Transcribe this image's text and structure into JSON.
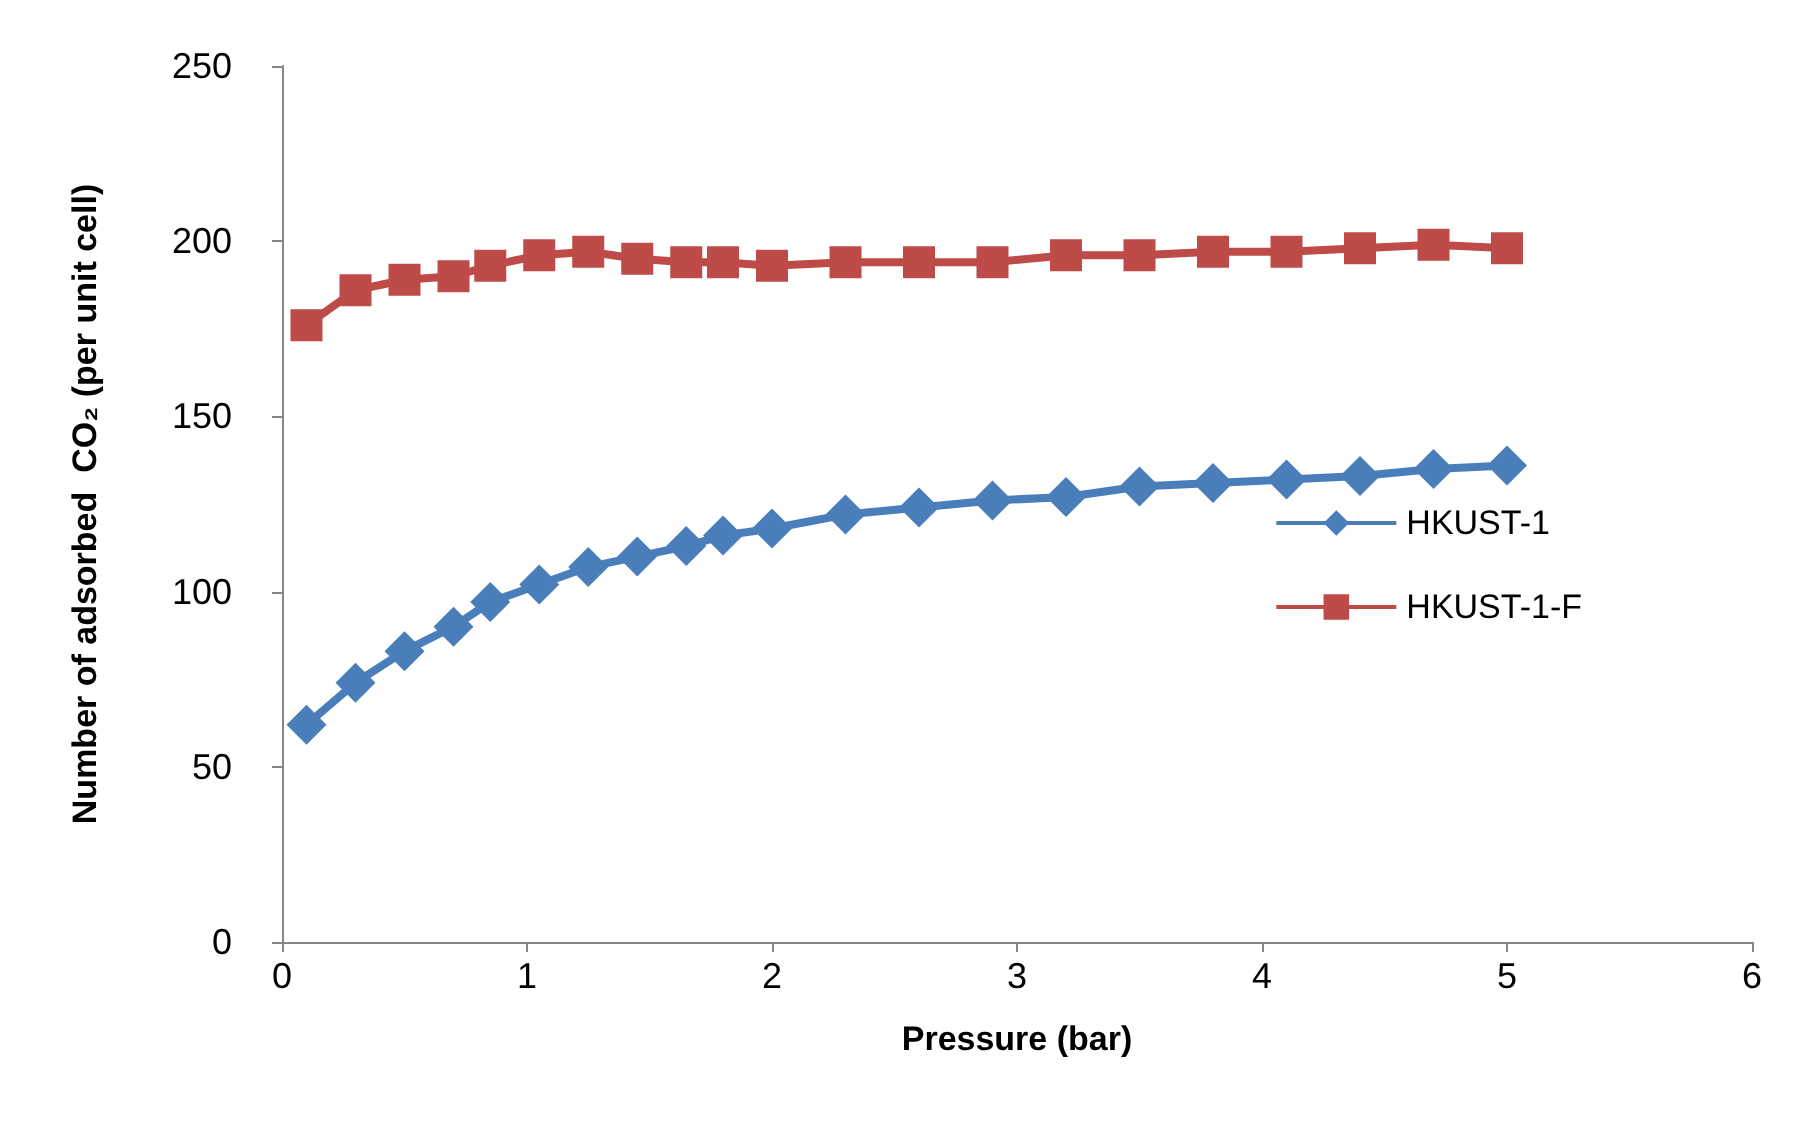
{
  "chart_data": {
    "type": "line",
    "xlabel": "Pressure (bar)",
    "ylabel": "Number of adsorbed  CO₂ (per unit cell)",
    "x": [
      0.1,
      0.3,
      0.5,
      0.7,
      0.85,
      1.05,
      1.25,
      1.45,
      1.65,
      1.8,
      2.0,
      2.3,
      2.6,
      2.9,
      3.2,
      3.5,
      3.8,
      4.1,
      4.4,
      4.7,
      5.0
    ],
    "series": [
      {
        "name": "HKUST-1",
        "color": "#4a7ebb",
        "marker": "diamond",
        "values": [
          62,
          74,
          83,
          90,
          97,
          102,
          107,
          110,
          113,
          116,
          118,
          122,
          124,
          126,
          127,
          130,
          131,
          132,
          133,
          135,
          136
        ]
      },
      {
        "name": "HKUST-1-F",
        "color": "#be4b48",
        "marker": "square",
        "values": [
          176,
          186,
          189,
          190,
          193,
          196,
          197,
          195,
          194,
          194,
          193,
          194,
          194,
          194,
          196,
          196,
          197,
          197,
          198,
          199,
          198
        ]
      }
    ],
    "xlim": [
      0,
      6
    ],
    "xticks": [
      0,
      1,
      2,
      3,
      4,
      5,
      6
    ],
    "ylim": [
      0,
      250
    ],
    "yticks": [
      0,
      50,
      100,
      150,
      200,
      250
    ],
    "grid": false,
    "legend": "right",
    "line_style": "solid"
  }
}
